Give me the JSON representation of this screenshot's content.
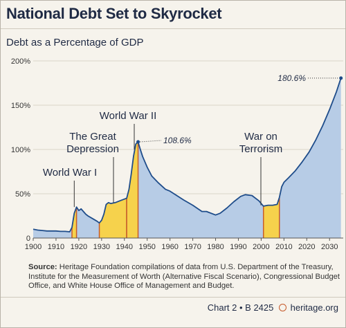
{
  "header": {
    "title": "National Debt Set to Skyrocket",
    "subtitle": "Debt as a Percentage of GDP"
  },
  "source": {
    "label": "Source:",
    "text": "Heritage Foundation compilations of data from U.S. Department of the Treasury, Institute for the Measurement of Worth (Alternative Fiscal Scenario), Congressional Budget Office, and White House Office of Management and Budget."
  },
  "footer": {
    "chart_id": "Chart 2 • B 2425",
    "site": "heritage.org"
  },
  "colors": {
    "area_fill": "#b7cce6",
    "line": "#1e4c8a",
    "highlight_fill": "#f6d24c",
    "highlight_edge": "#c65a2a",
    "background": "#f6f3ec"
  },
  "chart_data": {
    "type": "area",
    "title": "National Debt Set to Skyrocket",
    "subtitle": "Debt as a Percentage of GDP",
    "xlabel": "",
    "ylabel": "",
    "xlim": [
      1900,
      2036
    ],
    "ylim": [
      0,
      200
    ],
    "x_ticks": [
      1900,
      1910,
      1920,
      1930,
      1940,
      1950,
      1960,
      1970,
      1980,
      1990,
      2000,
      2010,
      2020,
      2030
    ],
    "x_tick_labels": [
      "1900",
      "1910",
      "1920",
      "1930",
      "1940",
      "1950",
      "1960",
      "1970",
      "1980",
      "1990",
      "2000",
      "2010",
      "2020",
      "2030"
    ],
    "y_ticks": [
      0,
      50,
      100,
      150,
      200
    ],
    "y_tick_labels": [
      "0",
      "50%",
      "100%",
      "150%",
      "200%"
    ],
    "grid": true,
    "legend": "none",
    "series": [
      {
        "x": [
          1900,
          1902,
          1904,
          1906,
          1908,
          1910,
          1912,
          1914,
          1916,
          1917,
          1918,
          1919,
          1920,
          1921,
          1922,
          1923,
          1924,
          1926,
          1928,
          1929,
          1930,
          1931,
          1932,
          1933,
          1934,
          1936,
          1938,
          1940,
          1941,
          1942,
          1943,
          1944,
          1945,
          1946,
          1947,
          1948,
          1950,
          1952,
          1955,
          1958,
          1960,
          1963,
          1966,
          1970,
          1974,
          1976,
          1980,
          1982,
          1985,
          1988,
          1991,
          1993,
          1996,
          1999,
          2001,
          2003,
          2005,
          2007,
          2008,
          2009,
          2010,
          2012,
          2015,
          2018,
          2021,
          2024,
          2027,
          2030,
          2033,
          2035
        ],
        "y": [
          10,
          9,
          8.5,
          8,
          8,
          8,
          7.5,
          7.5,
          7,
          12,
          28,
          35,
          31,
          33,
          30,
          27,
          25,
          22,
          19,
          17,
          20,
          27,
          38,
          40,
          39,
          40,
          42,
          44,
          45,
          55,
          72,
          92,
          106,
          108.6,
          100,
          92,
          80,
          70,
          62,
          55,
          53,
          48,
          43,
          37,
          30,
          30,
          26,
          28,
          34,
          41,
          47,
          49,
          48,
          42,
          36,
          37,
          37,
          38,
          46,
          58,
          63,
          68,
          76,
          86,
          97,
          111,
          127,
          145,
          165,
          180.6
        ]
      }
    ],
    "highlight_periods": [
      {
        "label": "World War I",
        "start": 1917,
        "end": 1919
      },
      {
        "label": "The Great Depression",
        "start": 1929,
        "end": 1941
      },
      {
        "label": "World War II",
        "start": 1941,
        "end": 1946
      },
      {
        "label": "War on Terrorism",
        "start": 2001,
        "end": 2008
      }
    ],
    "annotations": [
      {
        "text": "World War I",
        "x": 1918
      },
      {
        "text": "The Great",
        "x": 1936
      },
      {
        "text": "Depression",
        "x": 1936
      },
      {
        "text": "World War II",
        "x": 1944
      },
      {
        "text": "War on",
        "x": 2005
      },
      {
        "text": "Terrorism",
        "x": 2005
      },
      {
        "text": "108.6%",
        "x": 1946,
        "y": 108.6
      },
      {
        "text": "180.6%",
        "x": 2035,
        "y": 180.6
      }
    ]
  }
}
